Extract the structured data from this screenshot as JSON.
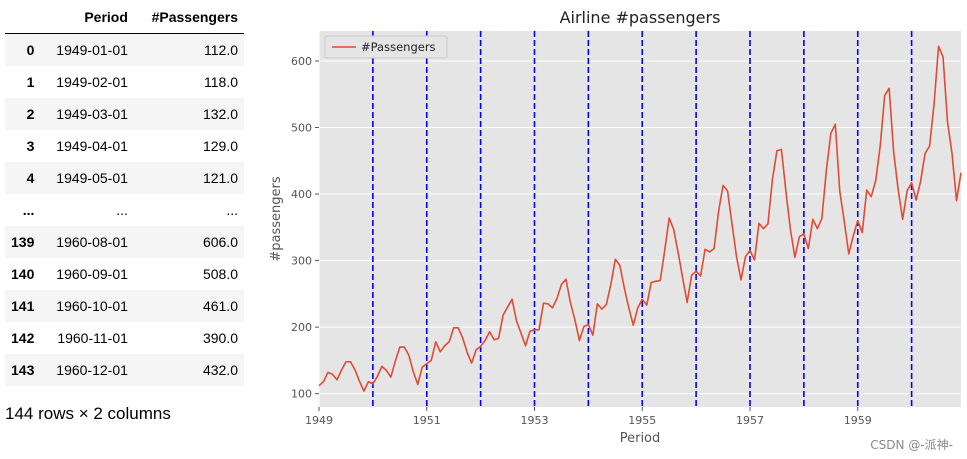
{
  "table": {
    "columns": [
      "Period",
      "#Passengers"
    ],
    "rows": [
      {
        "index": "0",
        "period": "1949-01-01",
        "passengers": "112.0"
      },
      {
        "index": "1",
        "period": "1949-02-01",
        "passengers": "118.0"
      },
      {
        "index": "2",
        "period": "1949-03-01",
        "passengers": "132.0"
      },
      {
        "index": "3",
        "period": "1949-04-01",
        "passengers": "129.0"
      },
      {
        "index": "4",
        "period": "1949-05-01",
        "passengers": "121.0"
      },
      {
        "index": "...",
        "period": "...",
        "passengers": "..."
      },
      {
        "index": "139",
        "period": "1960-08-01",
        "passengers": "606.0"
      },
      {
        "index": "140",
        "period": "1960-09-01",
        "passengers": "508.0"
      },
      {
        "index": "141",
        "period": "1960-10-01",
        "passengers": "461.0"
      },
      {
        "index": "142",
        "period": "1960-11-01",
        "passengers": "390.0"
      },
      {
        "index": "143",
        "period": "1960-12-01",
        "passengers": "432.0"
      }
    ],
    "shape_label": "144 rows × 2 columns"
  },
  "watermark": "CSDN @-派神-",
  "chart_data": {
    "type": "line",
    "title": "Airline #passengers",
    "xlabel": "Period",
    "ylabel": "#passengers",
    "x_start": "1949-01",
    "x_frequency": "monthly",
    "xlim": [
      "1949-01",
      "1960-12"
    ],
    "ylim": [
      80,
      645
    ],
    "xticks": [
      "1949",
      "1951",
      "1953",
      "1955",
      "1957",
      "1959"
    ],
    "yticks": [
      100,
      200,
      300,
      400,
      500,
      600
    ],
    "grid": true,
    "legend_position": "top-left",
    "style": "ggplot",
    "background_color": "#e5e5e5",
    "series": [
      {
        "name": "#Passengers",
        "color": "#e24a33",
        "values": [
          112,
          118,
          132,
          129,
          121,
          135,
          148,
          148,
          136,
          119,
          104,
          118,
          115,
          126,
          141,
          135,
          125,
          149,
          170,
          170,
          158,
          133,
          114,
          140,
          145,
          150,
          178,
          163,
          172,
          178,
          199,
          199,
          184,
          162,
          146,
          166,
          171,
          180,
          193,
          181,
          183,
          218,
          230,
          242,
          209,
          191,
          172,
          194,
          196,
          196,
          236,
          235,
          229,
          243,
          264,
          272,
          237,
          211,
          180,
          201,
          204,
          188,
          235,
          227,
          234,
          264,
          302,
          293,
          259,
          229,
          203,
          229,
          242,
          233,
          267,
          269,
          270,
          315,
          364,
          347,
          312,
          274,
          237,
          278,
          284,
          277,
          317,
          313,
          318,
          374,
          413,
          405,
          355,
          306,
          271,
          306,
          315,
          301,
          356,
          348,
          355,
          422,
          465,
          467,
          404,
          347,
          305,
          336,
          340,
          318,
          362,
          348,
          363,
          435,
          491,
          505,
          404,
          359,
          310,
          337,
          360,
          342,
          406,
          396,
          420,
          472,
          548,
          559,
          463,
          407,
          362,
          405,
          417,
          391,
          419,
          461,
          472,
          535,
          622,
          606,
          508,
          461,
          390,
          432
        ]
      }
    ],
    "vlines": {
      "color": "#0000ff",
      "style": "dashed",
      "x": [
        "1950-01",
        "1951-01",
        "1952-01",
        "1953-01",
        "1954-01",
        "1955-01",
        "1956-01",
        "1957-01",
        "1958-01",
        "1959-01",
        "1960-01"
      ]
    }
  }
}
